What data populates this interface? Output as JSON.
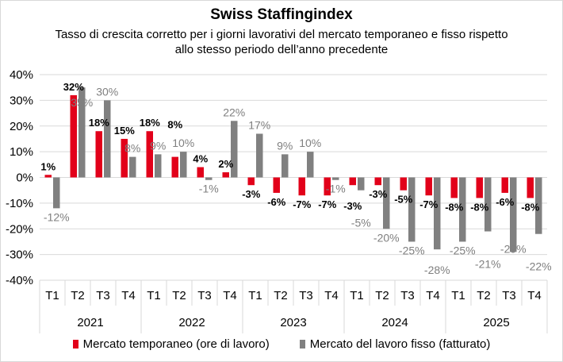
{
  "chart_data": {
    "type": "bar",
    "title": "Swiss Staffingindex",
    "subtitle": "Tasso di crescita corretto per i giorni lavorativi del mercato temporaneo e fisso rispetto allo stesso periodo dell’anno precedente",
    "quarters": [
      "T1",
      "T2",
      "T3",
      "T4",
      "T1",
      "T2",
      "T3",
      "T4",
      "T1",
      "T2",
      "T3",
      "T4",
      "T1",
      "T2",
      "T3",
      "T4",
      "T1",
      "T2",
      "T3",
      "T4"
    ],
    "years": [
      "2021",
      "2022",
      "2023",
      "2024",
      "2025"
    ],
    "ylim": [
      -40,
      40
    ],
    "yticks": [
      -40,
      -30,
      -20,
      -10,
      0,
      10,
      20,
      30,
      40
    ],
    "ytick_labels": [
      "-40%",
      "-30%",
      "-20%",
      "-10%",
      "0%",
      "10%",
      "20%",
      "30%",
      "40%"
    ],
    "grid": true,
    "legend_position": "bottom",
    "series": [
      {
        "name": "Mercato temporaneo (ore di lavoro)",
        "color": "#e2001a",
        "values": [
          1,
          32,
          18,
          15,
          18,
          8,
          4,
          2,
          -3,
          -6,
          -7,
          -7,
          -3,
          -3,
          -5,
          -7,
          -8,
          -8,
          -6,
          -8
        ]
      },
      {
        "name": "Mercato del lavoro fisso (fatturato)",
        "color": "#808080",
        "values": [
          -12,
          35,
          30,
          8,
          9,
          10,
          -1,
          22,
          17,
          9,
          10,
          -1,
          -5,
          -20,
          -25,
          -28,
          -25,
          -21,
          -29,
          -22
        ]
      }
    ]
  }
}
